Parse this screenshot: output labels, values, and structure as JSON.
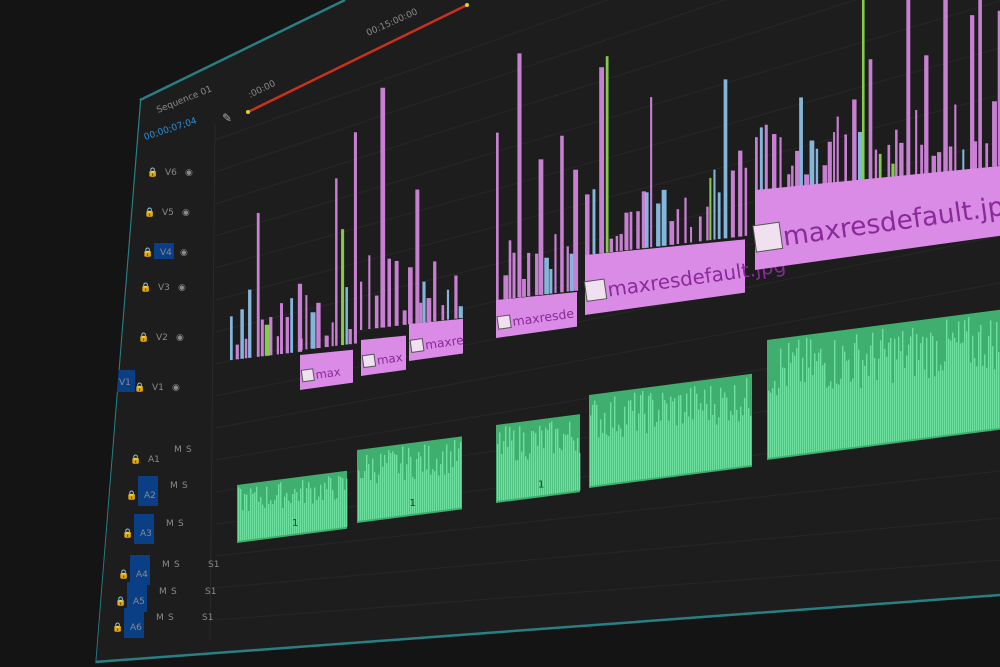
{
  "app": {
    "sequence_tab": "Sequence 01",
    "playhead_timecode": "00;00;07;04",
    "ruler": {
      "start_label": ":00:00",
      "mark_label": "00:15:00:00"
    }
  },
  "tracks": {
    "video": [
      {
        "label": "V6"
      },
      {
        "label": "V5"
      },
      {
        "label": "V4"
      },
      {
        "label": "V3"
      },
      {
        "label": "V2"
      },
      {
        "label": "V1",
        "source_patch": "V1"
      }
    ],
    "audio": [
      {
        "label": "A1",
        "mute": "M",
        "solo": "S"
      },
      {
        "label": "A2",
        "mute": "M",
        "solo": "S"
      },
      {
        "label": "A3",
        "mute": "M",
        "solo": "S"
      },
      {
        "label": "A4",
        "mute": "M",
        "solo": "S",
        "voice": "S1"
      },
      {
        "label": "A5",
        "mute": "M",
        "solo": "S",
        "voice": "S1"
      },
      {
        "label": "A6",
        "mute": "M",
        "solo": "S",
        "voice": "S1"
      }
    ]
  },
  "video_clips": [
    {
      "label": "max",
      "fx": "fx"
    },
    {
      "label": "max",
      "fx": "fx"
    },
    {
      "label": "maxre",
      "fx": "fx"
    },
    {
      "label": "maxresde",
      "fx": "fx"
    },
    {
      "label": "maxresdefault.jpg",
      "fx": "fx"
    },
    {
      "label": "maxresdefault.jpg",
      "fx": "fx"
    }
  ],
  "audio_clips": [
    {
      "marker": "1"
    },
    {
      "marker": "1"
    },
    {
      "marker": "1"
    },
    {
      "marker": ""
    },
    {
      "marker": ""
    }
  ],
  "colors": {
    "video_clip": "#d98be6",
    "audio_clip": "#4fd08a",
    "track_target": "#0a3f86",
    "work_area": "#c8321c",
    "frame_border": "#2c9aa0",
    "background": "#1b1b1b"
  }
}
